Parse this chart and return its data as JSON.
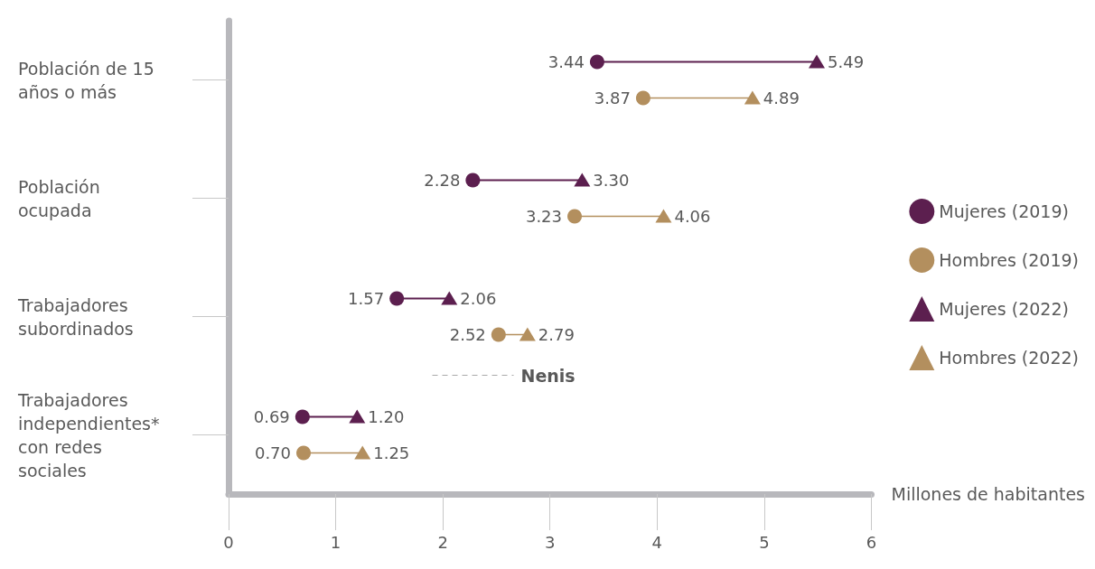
{
  "chart_data": {
    "type": "scatter",
    "xlabel": "Millones de habitantes",
    "categories": [
      "Población de 15 años o más",
      "Población ocupada",
      "Trabajadores subordinados",
      "Trabajadores independientes* con redes sociales"
    ],
    "series": [
      {
        "name": "Mujeres (2019)",
        "color": "#5c1f4f",
        "marker": "circle",
        "values": [
          3.44,
          2.28,
          1.57,
          0.69
        ],
        "value_labels": [
          "3.44",
          "2.28",
          "1.57",
          "0.69"
        ]
      },
      {
        "name": "Hombres (2019)",
        "color": "#b38f5e",
        "marker": "circle",
        "values": [
          3.87,
          3.23,
          2.52,
          0.7
        ],
        "value_labels": [
          "3.87",
          "3.23",
          "2.52",
          "0.70"
        ]
      },
      {
        "name": "Mujeres (2022)",
        "color": "#5c1f4f",
        "marker": "triangle",
        "values": [
          5.49,
          3.3,
          2.06,
          1.2
        ],
        "value_labels": [
          "5.49",
          "3.30",
          "2.06",
          "1.20"
        ]
      },
      {
        "name": "Hombres (2022)",
        "color": "#b38f5e",
        "marker": "triangle",
        "values": [
          4.89,
          4.06,
          2.79,
          1.25
        ],
        "value_labels": [
          "4.89",
          "4.06",
          "2.79",
          "1.25"
        ]
      }
    ],
    "orientation": "horizontal",
    "xlim": [
      0,
      6
    ],
    "xticks": [
      0,
      1,
      2,
      3,
      4,
      5,
      6
    ],
    "legend": "right",
    "annotations": [
      "Nenis"
    ]
  }
}
